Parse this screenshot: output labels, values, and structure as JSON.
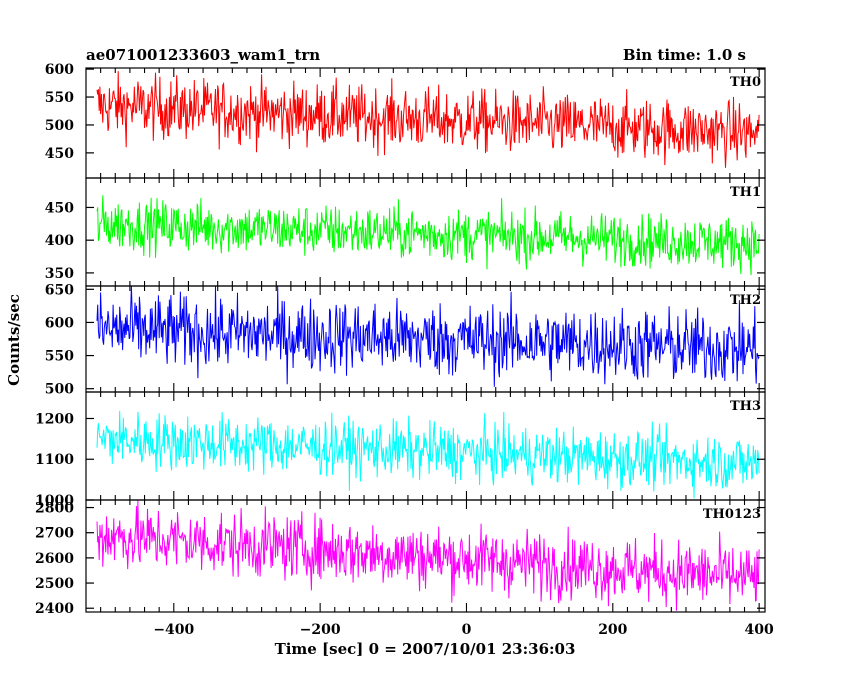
{
  "title": "ae071001233603_wam1_trn",
  "bin_time_label": "Bin time: 1.0 s",
  "xlabel": "Time [sec] 0 = 2007/10/01 23:36:03",
  "ylabel": "Counts/sec",
  "chart_data": {
    "type": "line",
    "xlim": [
      -520,
      408
    ],
    "x_range": [
      -505,
      400
    ],
    "x_step": 1.0,
    "xticks": [
      -400,
      -200,
      0,
      200,
      400
    ],
    "grid": false,
    "series": [
      {
        "name": "TH0",
        "color": "#ff0000",
        "ylim": [
          405,
          602
        ],
        "yticks": [
          450,
          500,
          550,
          600
        ],
        "start_mean": 535,
        "end_mean": 485,
        "noise": 28
      },
      {
        "name": "TH1",
        "color": "#00ff00",
        "ylim": [
          330,
          495
        ],
        "yticks": [
          350,
          400,
          450
        ],
        "start_mean": 425,
        "end_mean": 395,
        "noise": 20
      },
      {
        "name": "TH2",
        "color": "#0000ff",
        "ylim": [
          495,
          655
        ],
        "yticks": [
          500,
          550,
          600,
          650
        ],
        "start_mean": 590,
        "end_mean": 560,
        "noise": 28
      },
      {
        "name": "TH3",
        "color": "#00ffff",
        "ylim": [
          1000,
          1265
        ],
        "yticks": [
          1000,
          1100,
          1200
        ],
        "start_mean": 1150,
        "end_mean": 1090,
        "noise": 35
      },
      {
        "name": "TH0123",
        "color": "#ff00ff",
        "ylim": [
          2385,
          2830
        ],
        "yticks": [
          2400,
          2500,
          2600,
          2700,
          2800
        ],
        "start_mean": 2690,
        "end_mean": 2520,
        "noise": 65
      }
    ]
  }
}
